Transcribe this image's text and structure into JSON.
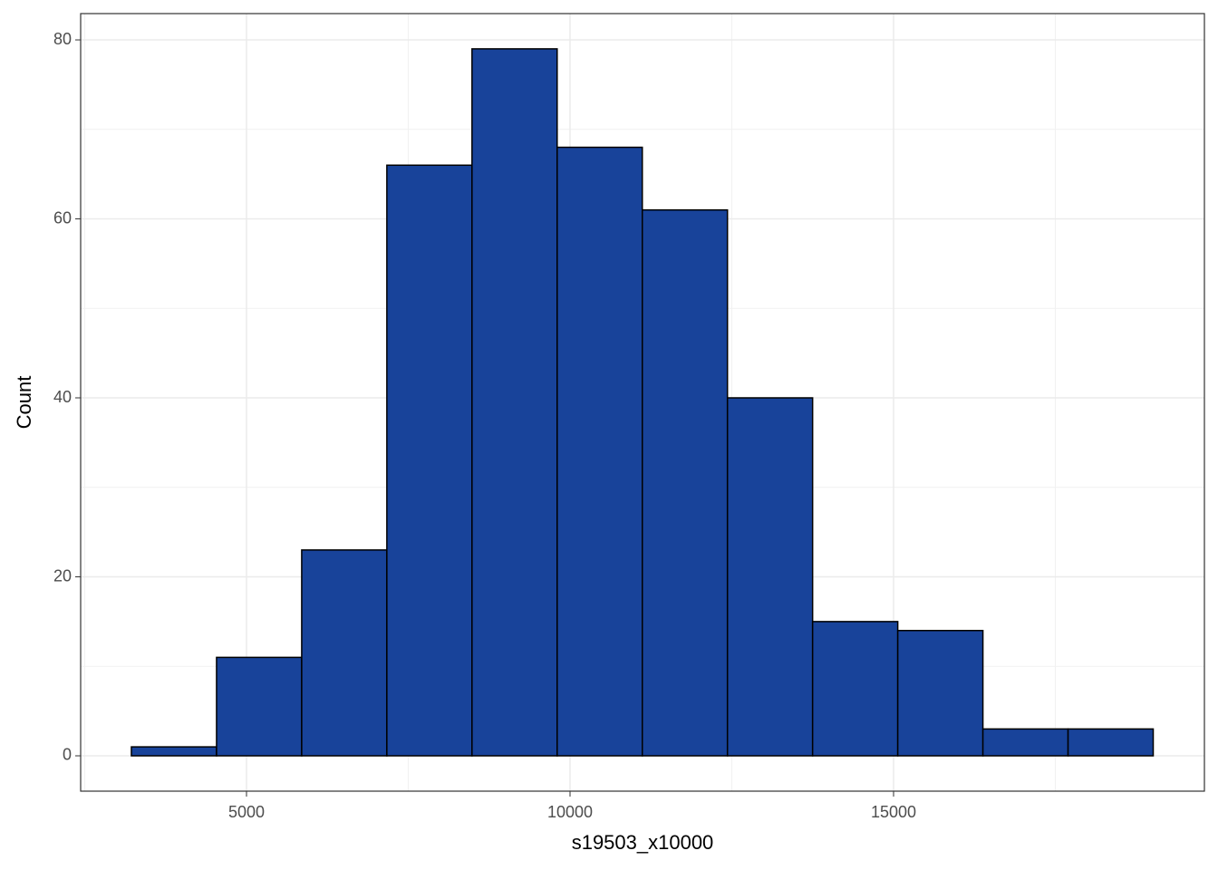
{
  "chart_data": {
    "type": "histogram",
    "x_label": "s19503_x10000",
    "y_label": "Count",
    "bins": [
      3221,
      4537,
      5853,
      7169,
      8485,
      9801,
      11117,
      12433,
      13749,
      15065,
      16381,
      17697,
      19013
    ],
    "counts": [
      1,
      11,
      23,
      66,
      79,
      68,
      61,
      40,
      15,
      14,
      3,
      3
    ],
    "color": "#18439a",
    "edge_color": "#000000",
    "xlim": [
      2437,
      19804
    ],
    "ylim": [
      -3.95,
      82.94
    ],
    "xticks": [
      5000,
      10000,
      15000
    ],
    "yticks": [
      0,
      20,
      40,
      60,
      80
    ],
    "x_minor_ticks": [
      2500,
      7500,
      12500,
      17500
    ],
    "y_minor_ticks": [
      10,
      30,
      50,
      70
    ],
    "grid": true
  }
}
